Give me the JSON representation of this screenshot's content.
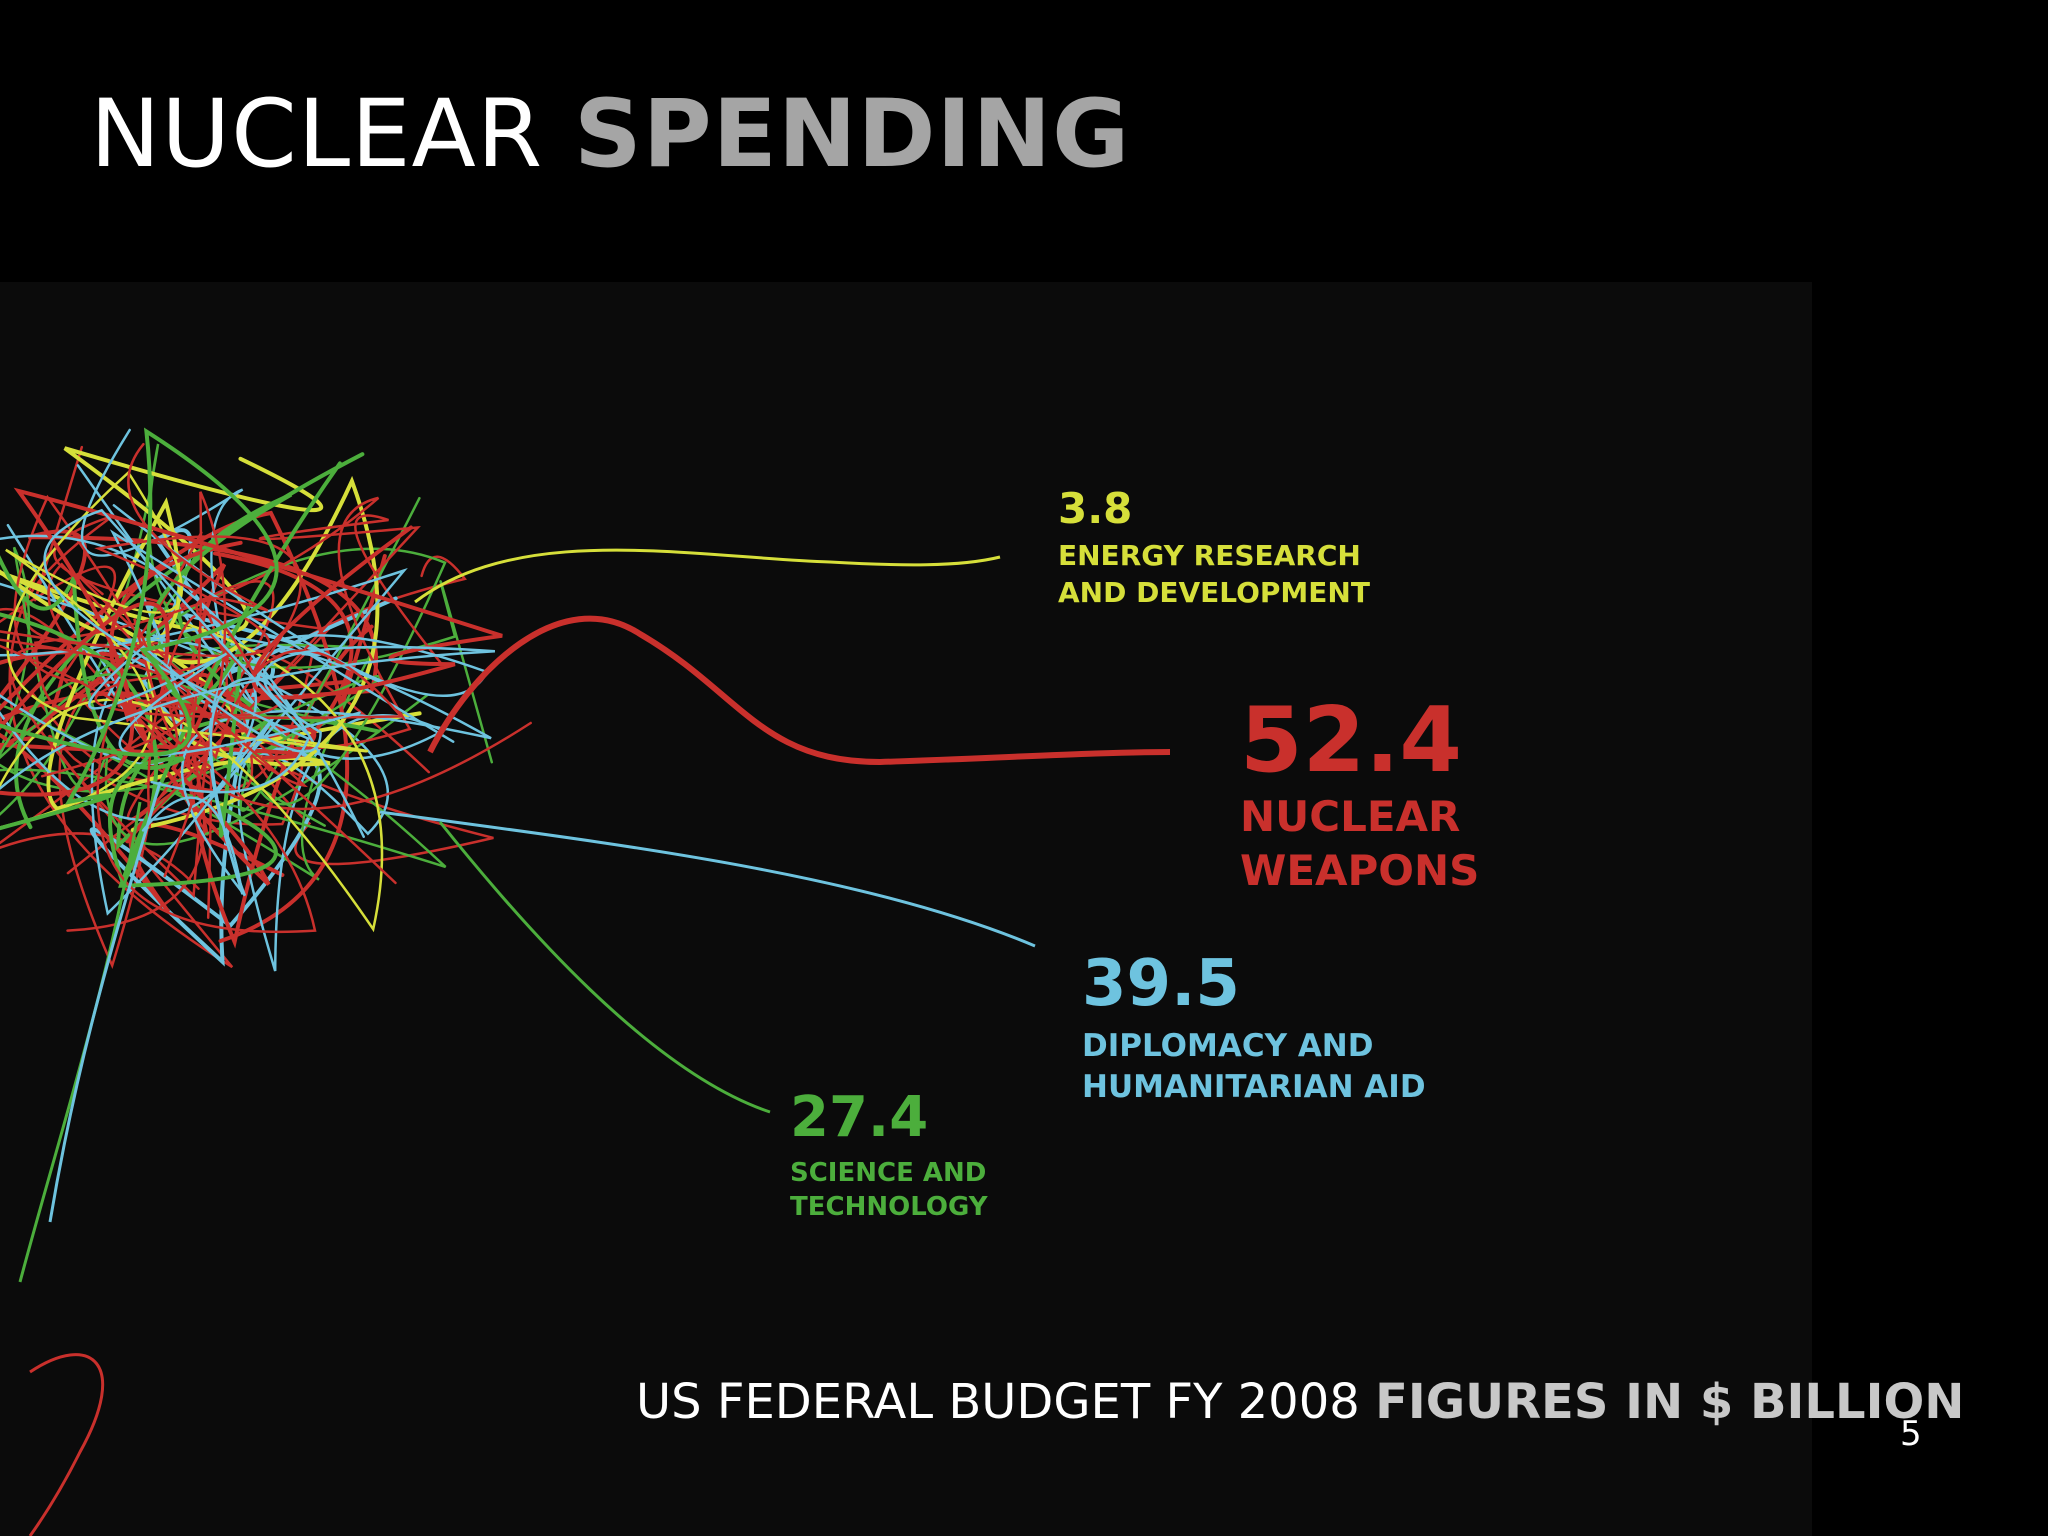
{
  "slide": {
    "title_light": "NUCLEAR",
    "title_bold": "SPENDING",
    "footer_light": "US FEDERAL BUDGET FY 2008",
    "footer_bold": "FIGURES IN $ BILLION",
    "page_number": "5"
  },
  "colors": {
    "background": "#000000",
    "panel": "#0b0b0b",
    "energy": "#d6df3a",
    "weapons": "#c9302c",
    "diplomacy": "#6ec3df",
    "science": "#4cae3c"
  },
  "chart_data": {
    "type": "other",
    "description_units": "$ billion",
    "items": [
      {
        "key": "energy",
        "value": "3.8",
        "label": [
          "ENERGY RESEARCH",
          "AND DEVELOPMENT"
        ],
        "color": "#d6df3a"
      },
      {
        "key": "weapons",
        "value": "52.4",
        "label": [
          "NUCLEAR",
          "WEAPONS"
        ],
        "color": "#c9302c"
      },
      {
        "key": "diplomacy",
        "value": "39.5",
        "label": [
          "DIPLOMACY AND",
          "HUMANITARIAN AID"
        ],
        "color": "#6ec3df"
      },
      {
        "key": "science",
        "value": "27.4",
        "label": [
          "SCIENCE AND",
          "TECHNOLOGY"
        ],
        "color": "#4cae3c"
      }
    ]
  }
}
